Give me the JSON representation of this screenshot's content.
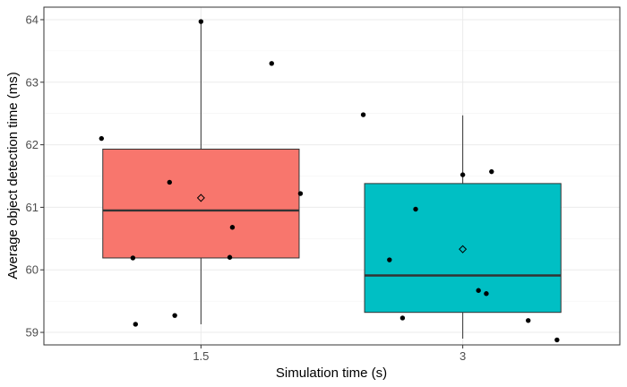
{
  "chart_data": {
    "type": "box",
    "title": "",
    "xlabel": "Simulation time (s)",
    "ylabel": "Average object detection time (ms)",
    "categories": [
      "1.5",
      "3"
    ],
    "ylim": [
      58.8,
      64.2
    ],
    "y_ticks": [
      59,
      60,
      61,
      62,
      63,
      64
    ],
    "grid": true,
    "theme": "bw",
    "series": [
      {
        "category": "1.5",
        "color": "#F8766D",
        "box": {
          "lower_whisker": 59.13,
          "q1": 60.19,
          "median": 60.95,
          "q3": 61.93,
          "upper_whisker": 63.97
        },
        "mean": 61.15,
        "points": [
          {
            "x_jitter": 0.0,
            "y": 63.97
          },
          {
            "x_jitter": 0.27,
            "y": 63.3
          },
          {
            "x_jitter": -0.38,
            "y": 62.1
          },
          {
            "x_jitter": -0.12,
            "y": 61.4
          },
          {
            "x_jitter": 0.38,
            "y": 61.22
          },
          {
            "x_jitter": 0.12,
            "y": 60.68
          },
          {
            "x_jitter": -0.26,
            "y": 60.19
          },
          {
            "x_jitter": 0.11,
            "y": 60.2
          },
          {
            "x_jitter": -0.1,
            "y": 59.27
          },
          {
            "x_jitter": -0.25,
            "y": 59.13
          }
        ]
      },
      {
        "category": "3",
        "color": "#00BFC4",
        "box": {
          "lower_whisker": 58.9,
          "q1": 59.32,
          "median": 59.91,
          "q3": 61.38,
          "upper_whisker": 62.47
        },
        "mean": 60.33,
        "points": [
          {
            "x_jitter": -0.38,
            "y": 62.48
          },
          {
            "x_jitter": 0.11,
            "y": 61.57
          },
          {
            "x_jitter": 0.0,
            "y": 61.52
          },
          {
            "x_jitter": -0.18,
            "y": 60.97
          },
          {
            "x_jitter": -0.28,
            "y": 60.16
          },
          {
            "x_jitter": 0.06,
            "y": 59.67
          },
          {
            "x_jitter": 0.09,
            "y": 59.62
          },
          {
            "x_jitter": -0.23,
            "y": 59.23
          },
          {
            "x_jitter": 0.25,
            "y": 59.19
          },
          {
            "x_jitter": 0.36,
            "y": 58.88
          }
        ]
      }
    ]
  }
}
